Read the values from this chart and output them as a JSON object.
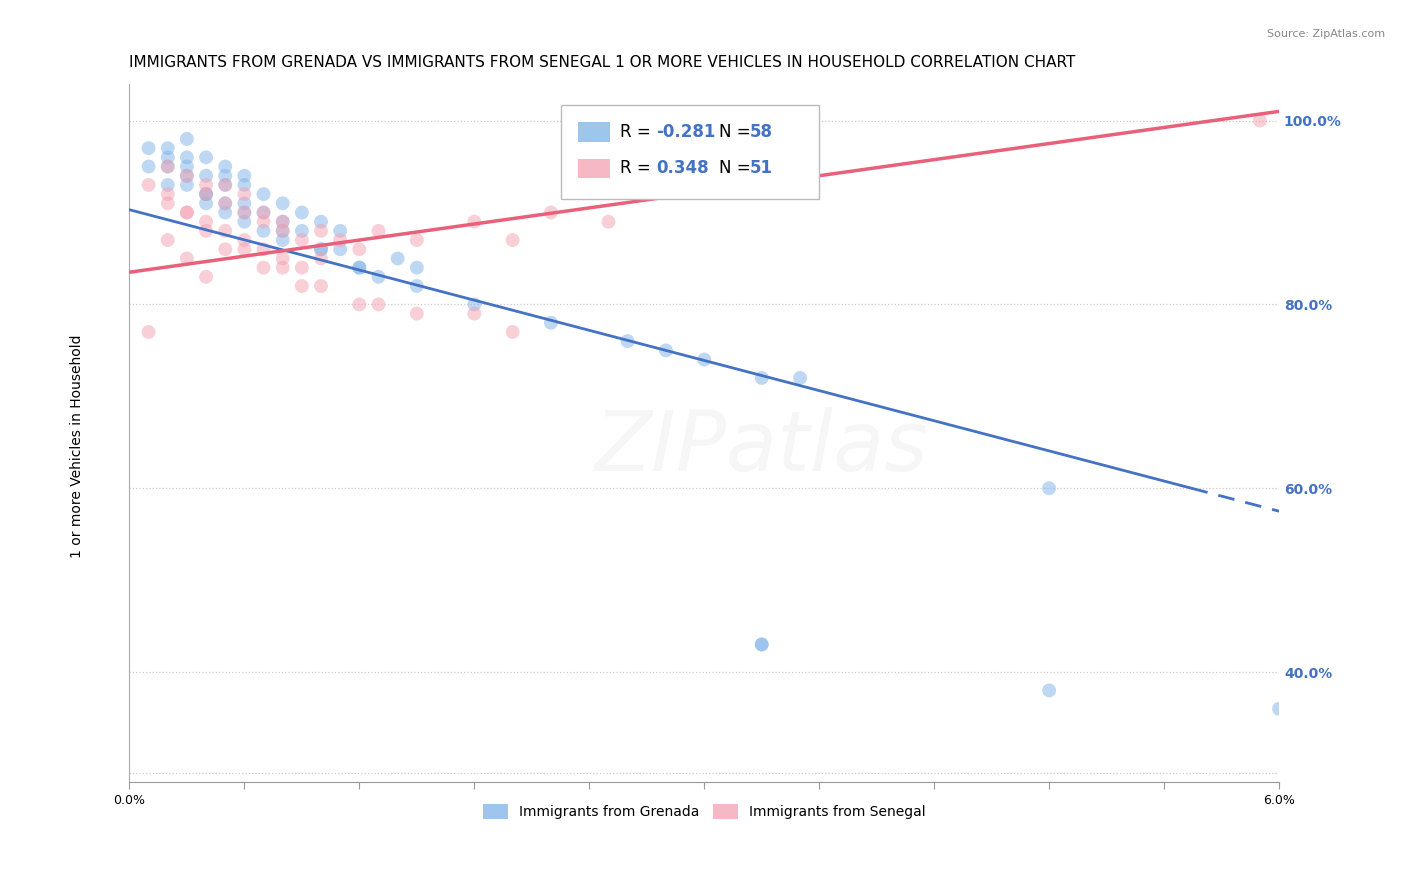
{
  "title": "IMMIGRANTS FROM GRENADA VS IMMIGRANTS FROM SENEGAL 1 OR MORE VEHICLES IN HOUSEHOLD CORRELATION CHART",
  "source": "Source: ZipAtlas.com",
  "ylabel": "1 or more Vehicles in Household",
  "grenada_color": "#7EB3E8",
  "senegal_color": "#F4A0B0",
  "trend_grenada_color": "#4472C4",
  "trend_senegal_color": "#E8607A",
  "grenada_label": "Immigrants from Grenada",
  "senegal_label": "Immigrants from Senegal",
  "grenada_R": -0.281,
  "senegal_R": 0.348,
  "grenada_N": 58,
  "senegal_N": 51,
  "xmin": 0.0,
  "xmax": 0.06,
  "ymin": 0.28,
  "ymax": 1.04,
  "yticks": [
    0.4,
    0.6,
    0.8,
    1.0
  ],
  "ytick_labels": [
    "40.0%",
    "60.0%",
    "80.0%",
    "100.0%"
  ],
  "xtick_labels": [
    "0.0%",
    "6.0%"
  ],
  "grenada_x": [
    0.001,
    0.002,
    0.002,
    0.003,
    0.003,
    0.003,
    0.004,
    0.004,
    0.004,
    0.005,
    0.005,
    0.005,
    0.005,
    0.005,
    0.006,
    0.006,
    0.006,
    0.006,
    0.007,
    0.007,
    0.007,
    0.008,
    0.008,
    0.008,
    0.009,
    0.009,
    0.01,
    0.01,
    0.011,
    0.011,
    0.012,
    0.013,
    0.014,
    0.015,
    0.002,
    0.003,
    0.004,
    0.006,
    0.008,
    0.01,
    0.012,
    0.015,
    0.018,
    0.022,
    0.026,
    0.03,
    0.001,
    0.002,
    0.003,
    0.004,
    0.035,
    0.028,
    0.033,
    0.048,
    0.033,
    0.033,
    0.048,
    0.06
  ],
  "grenada_y": [
    0.95,
    0.93,
    0.97,
    0.96,
    0.98,
    0.95,
    0.94,
    0.92,
    0.96,
    0.94,
    0.91,
    0.93,
    0.9,
    0.95,
    0.93,
    0.91,
    0.89,
    0.94,
    0.92,
    0.9,
    0.88,
    0.91,
    0.89,
    0.87,
    0.9,
    0.88,
    0.86,
    0.89,
    0.88,
    0.86,
    0.84,
    0.83,
    0.85,
    0.84,
    0.96,
    0.94,
    0.92,
    0.9,
    0.88,
    0.86,
    0.84,
    0.82,
    0.8,
    0.78,
    0.76,
    0.74,
    0.97,
    0.95,
    0.93,
    0.91,
    0.72,
    0.75,
    0.72,
    0.6,
    0.43,
    0.43,
    0.38,
    0.36
  ],
  "senegal_x": [
    0.001,
    0.002,
    0.002,
    0.003,
    0.003,
    0.004,
    0.004,
    0.004,
    0.005,
    0.005,
    0.005,
    0.006,
    0.006,
    0.006,
    0.007,
    0.007,
    0.007,
    0.008,
    0.008,
    0.008,
    0.009,
    0.009,
    0.01,
    0.01,
    0.011,
    0.012,
    0.013,
    0.015,
    0.018,
    0.02,
    0.022,
    0.025,
    0.002,
    0.003,
    0.004,
    0.005,
    0.007,
    0.009,
    0.012,
    0.015,
    0.02,
    0.002,
    0.003,
    0.004,
    0.006,
    0.008,
    0.01,
    0.013,
    0.018,
    0.059,
    0.001
  ],
  "senegal_y": [
    0.93,
    0.91,
    0.95,
    0.9,
    0.94,
    0.92,
    0.89,
    0.93,
    0.91,
    0.88,
    0.93,
    0.9,
    0.87,
    0.92,
    0.89,
    0.86,
    0.9,
    0.88,
    0.85,
    0.89,
    0.87,
    0.84,
    0.88,
    0.85,
    0.87,
    0.86,
    0.88,
    0.87,
    0.89,
    0.87,
    0.9,
    0.89,
    0.87,
    0.85,
    0.83,
    0.86,
    0.84,
    0.82,
    0.8,
    0.79,
    0.77,
    0.92,
    0.9,
    0.88,
    0.86,
    0.84,
    0.82,
    0.8,
    0.79,
    1.0,
    0.77
  ],
  "trend_grenada_y0": 0.903,
  "trend_grenada_y1": 0.575,
  "trend_senegal_y0": 0.835,
  "trend_senegal_y1": 1.01,
  "trend_solid_end_grenada": 0.06,
  "trend_dashed_start_grenada": 0.046,
  "bg_color": "#FFFFFF",
  "dot_alpha": 0.5,
  "dot_size": 100,
  "grid_color": "#CCCCCC",
  "title_fontsize": 11,
  "axis_label_fontsize": 10,
  "tick_fontsize": 9,
  "watermark_text": "ZIPatlas",
  "watermark_fontsize": 60,
  "watermark_alpha": 0.1,
  "value_color": "#4472C4",
  "label_color": "#000000"
}
